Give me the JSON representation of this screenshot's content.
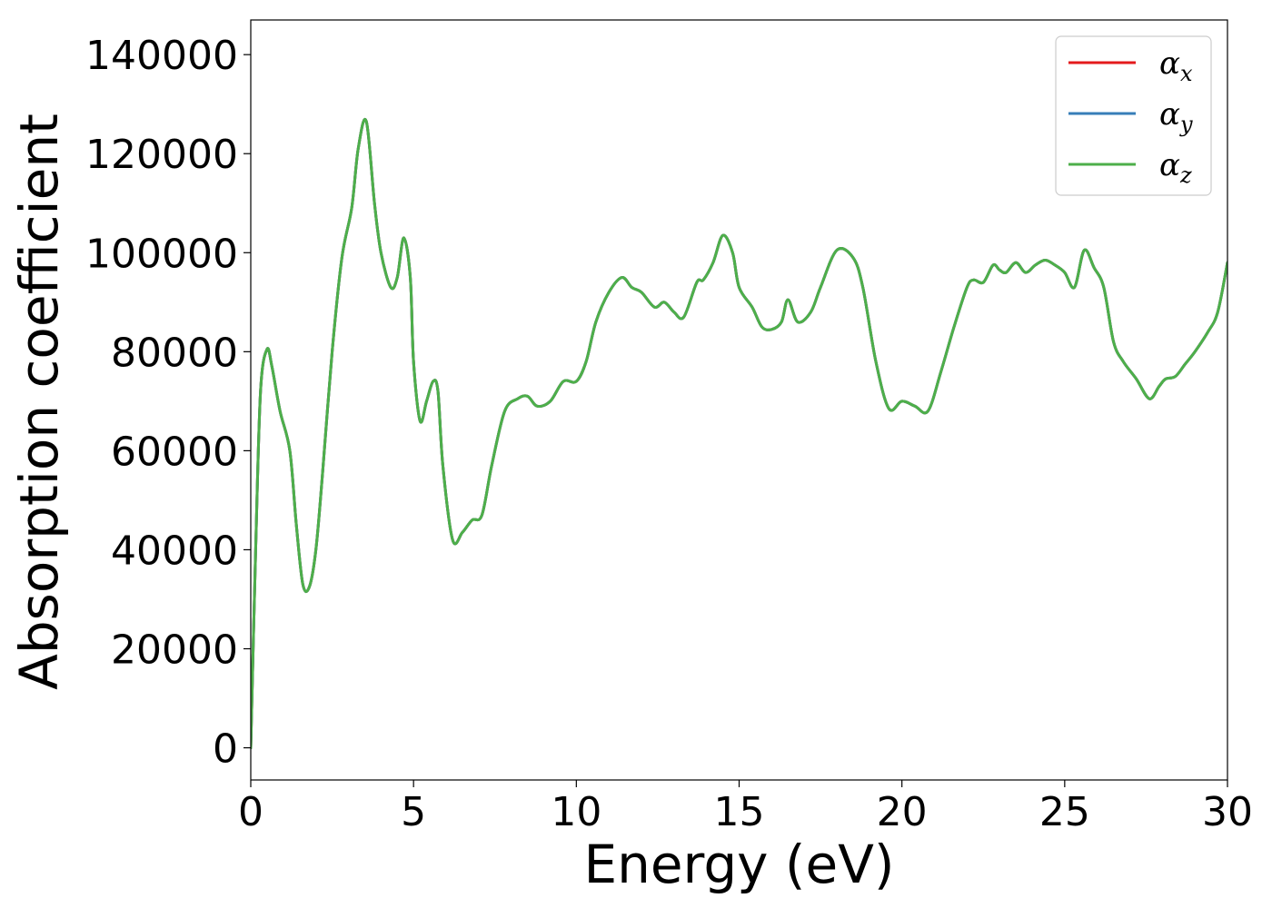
{
  "chart_data": {
    "type": "line",
    "title": "",
    "xlabel": "Energy (eV)",
    "ylabel": "Absorption coefficient",
    "xlim": [
      0,
      30
    ],
    "ylim": [
      -6500,
      147000
    ],
    "xticks": [
      0,
      5,
      10,
      15,
      20,
      25,
      30
    ],
    "yticks": [
      0,
      20000,
      40000,
      60000,
      80000,
      100000,
      120000,
      140000
    ],
    "grid": false,
    "legend_placement": "top-right",
    "series": [
      {
        "name": "αx",
        "name_base": "α",
        "name_sub": "x",
        "color": "#e41a1c",
        "x": [
          0,
          0.15,
          0.3,
          0.5,
          0.65,
          0.9,
          1.2,
          1.4,
          1.6,
          1.8,
          2.0,
          2.2,
          2.5,
          2.8,
          3.1,
          3.3,
          3.55,
          3.8,
          4.0,
          4.3,
          4.5,
          4.7,
          4.9,
          5.0,
          5.2,
          5.4,
          5.6,
          5.75,
          5.9,
          6.2,
          6.5,
          6.8,
          7.1,
          7.4,
          7.8,
          8.2,
          8.5,
          8.8,
          9.2,
          9.6,
          10.0,
          10.3,
          10.6,
          11.0,
          11.4,
          11.7,
          12.0,
          12.4,
          12.7,
          13.0,
          13.3,
          13.7,
          13.9,
          14.2,
          14.5,
          14.8,
          15.0,
          15.4,
          15.7,
          16.0,
          16.3,
          16.5,
          16.8,
          17.2,
          17.5,
          18.0,
          18.5,
          18.8,
          19.2,
          19.6,
          20.0,
          20.4,
          20.8,
          21.2,
          21.6,
          22.0,
          22.2,
          22.5,
          22.8,
          23.0,
          23.2,
          23.5,
          23.8,
          24.1,
          24.4,
          24.7,
          25.0,
          25.3,
          25.6,
          25.9,
          26.2,
          26.5,
          26.8,
          27.2,
          27.6,
          27.9,
          28.1,
          28.4,
          28.7,
          29.0,
          29.4,
          29.7,
          30.0
        ],
        "y": [
          0,
          40000,
          72000,
          80500,
          77000,
          68000,
          60000,
          45000,
          33000,
          32500,
          40000,
          55000,
          80000,
          99000,
          109000,
          121000,
          126500,
          110000,
          100000,
          93000,
          95000,
          103000,
          95000,
          78000,
          66000,
          70000,
          74000,
          72000,
          57000,
          42000,
          43500,
          46000,
          47000,
          57000,
          68000,
          70500,
          71000,
          69000,
          70000,
          74000,
          74000,
          78000,
          86000,
          92000,
          95000,
          93000,
          92000,
          89000,
          90000,
          88000,
          87000,
          94000,
          94500,
          98000,
          103500,
          100000,
          93000,
          89000,
          85000,
          84500,
          86000,
          90500,
          86000,
          88000,
          93000,
          100500,
          99000,
          93000,
          78000,
          68500,
          70000,
          69000,
          68000,
          76000,
          85000,
          93000,
          94500,
          94000,
          97500,
          96500,
          96000,
          98000,
          96000,
          97500,
          98500,
          97500,
          96000,
          93000,
          100500,
          97000,
          93000,
          82000,
          78000,
          74500,
          70500,
          73000,
          74500,
          75000,
          77500,
          80000,
          84000,
          88000,
          98000
        ]
      },
      {
        "name": "αy",
        "name_base": "α",
        "name_sub": "y",
        "color": "#377eb8",
        "x": [
          0,
          0.15,
          0.3,
          0.5,
          0.65,
          0.9,
          1.2,
          1.4,
          1.6,
          1.8,
          2.0,
          2.2,
          2.5,
          2.8,
          3.1,
          3.3,
          3.55,
          3.8,
          4.0,
          4.3,
          4.5,
          4.7,
          4.9,
          5.0,
          5.2,
          5.4,
          5.6,
          5.75,
          5.9,
          6.2,
          6.5,
          6.8,
          7.1,
          7.4,
          7.8,
          8.2,
          8.5,
          8.8,
          9.2,
          9.6,
          10.0,
          10.3,
          10.6,
          11.0,
          11.4,
          11.7,
          12.0,
          12.4,
          12.7,
          13.0,
          13.3,
          13.7,
          13.9,
          14.2,
          14.5,
          14.8,
          15.0,
          15.4,
          15.7,
          16.0,
          16.3,
          16.5,
          16.8,
          17.2,
          17.5,
          18.0,
          18.5,
          18.8,
          19.2,
          19.6,
          20.0,
          20.4,
          20.8,
          21.2,
          21.6,
          22.0,
          22.2,
          22.5,
          22.8,
          23.0,
          23.2,
          23.5,
          23.8,
          24.1,
          24.4,
          24.7,
          25.0,
          25.3,
          25.6,
          25.9,
          26.2,
          26.5,
          26.8,
          27.2,
          27.6,
          27.9,
          28.1,
          28.4,
          28.7,
          29.0,
          29.4,
          29.7,
          30.0
        ],
        "y": [
          0,
          40000,
          72000,
          80500,
          77000,
          68000,
          60000,
          45000,
          33000,
          32500,
          40000,
          55000,
          80000,
          99000,
          109000,
          121000,
          126500,
          110000,
          100000,
          93000,
          95000,
          103000,
          95000,
          78000,
          66000,
          70000,
          74000,
          72000,
          57000,
          42000,
          43500,
          46000,
          47000,
          57000,
          68000,
          70500,
          71000,
          69000,
          70000,
          74000,
          74000,
          78000,
          86000,
          92000,
          95000,
          93000,
          92000,
          89000,
          90000,
          88000,
          87000,
          94000,
          94500,
          98000,
          103500,
          100000,
          93000,
          89000,
          85000,
          84500,
          86000,
          90500,
          86000,
          88000,
          93000,
          100500,
          99000,
          93000,
          78000,
          68500,
          70000,
          69000,
          68000,
          76000,
          85000,
          93000,
          94500,
          94000,
          97500,
          96500,
          96000,
          98000,
          96000,
          97500,
          98500,
          97500,
          96000,
          93000,
          100500,
          97000,
          93000,
          82000,
          78000,
          74500,
          70500,
          73000,
          74500,
          75000,
          77500,
          80000,
          84000,
          88000,
          98000
        ]
      },
      {
        "name": "αz",
        "name_base": "α",
        "name_sub": "z",
        "color": "#4daf4a",
        "x": [
          0,
          0.15,
          0.3,
          0.5,
          0.65,
          0.9,
          1.2,
          1.4,
          1.6,
          1.8,
          2.0,
          2.2,
          2.5,
          2.8,
          3.1,
          3.3,
          3.55,
          3.8,
          4.0,
          4.3,
          4.5,
          4.7,
          4.9,
          5.0,
          5.2,
          5.4,
          5.6,
          5.75,
          5.9,
          6.2,
          6.5,
          6.8,
          7.1,
          7.4,
          7.8,
          8.2,
          8.5,
          8.8,
          9.2,
          9.6,
          10.0,
          10.3,
          10.6,
          11.0,
          11.4,
          11.7,
          12.0,
          12.4,
          12.7,
          13.0,
          13.3,
          13.7,
          13.9,
          14.2,
          14.5,
          14.8,
          15.0,
          15.4,
          15.7,
          16.0,
          16.3,
          16.5,
          16.8,
          17.2,
          17.5,
          18.0,
          18.5,
          18.8,
          19.2,
          19.6,
          20.0,
          20.4,
          20.8,
          21.2,
          21.6,
          22.0,
          22.2,
          22.5,
          22.8,
          23.0,
          23.2,
          23.5,
          23.8,
          24.1,
          24.4,
          24.7,
          25.0,
          25.3,
          25.6,
          25.9,
          26.2,
          26.5,
          26.8,
          27.2,
          27.6,
          27.9,
          28.1,
          28.4,
          28.7,
          29.0,
          29.4,
          29.7,
          30.0
        ],
        "y": [
          0,
          40000,
          72000,
          80500,
          77000,
          68000,
          60000,
          45000,
          33000,
          32500,
          40000,
          55000,
          80000,
          99000,
          109000,
          121000,
          126500,
          110000,
          100000,
          93000,
          95000,
          103000,
          95000,
          78000,
          66000,
          70000,
          74000,
          72000,
          57000,
          42000,
          43500,
          46000,
          47000,
          57000,
          68000,
          70500,
          71000,
          69000,
          70000,
          74000,
          74000,
          78000,
          86000,
          92000,
          95000,
          93000,
          92000,
          89000,
          90000,
          88000,
          87000,
          94000,
          94500,
          98000,
          103500,
          100000,
          93000,
          89000,
          85000,
          84500,
          86000,
          90500,
          86000,
          88000,
          93000,
          100500,
          99000,
          93000,
          78000,
          68500,
          70000,
          69000,
          68000,
          76000,
          85000,
          93000,
          94500,
          94000,
          97500,
          96500,
          96000,
          98000,
          96000,
          97500,
          98500,
          97500,
          96000,
          93000,
          100500,
          97000,
          93000,
          82000,
          78000,
          74500,
          70500,
          73000,
          74500,
          75000,
          77500,
          80000,
          84000,
          88000,
          98000
        ]
      }
    ]
  }
}
